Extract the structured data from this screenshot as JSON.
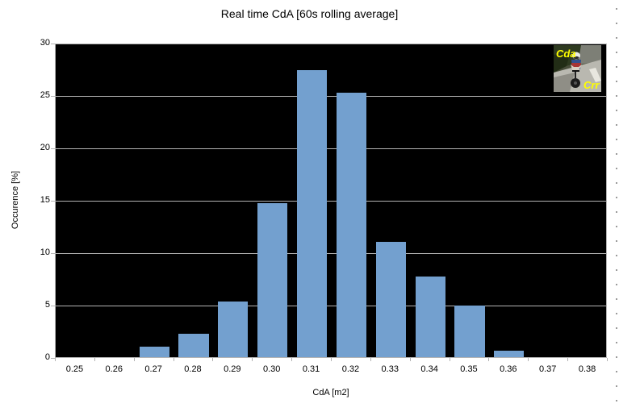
{
  "title": "Real time CdA [60s rolling average]",
  "chart_data": {
    "type": "bar",
    "title": "Real time CdA [60s rolling average]",
    "xlabel": "CdA [m2]",
    "ylabel": "Occurence [%]",
    "categories": [
      "0.25",
      "0.26",
      "0.27",
      "0.28",
      "0.29",
      "0.30",
      "0.31",
      "0.32",
      "0.33",
      "0.34",
      "0.35",
      "0.36",
      "0.37",
      "0.38"
    ],
    "values": [
      0,
      0,
      1.0,
      2.2,
      5.3,
      14.7,
      27.4,
      25.2,
      11.0,
      7.7,
      4.9,
      0.65,
      0,
      0
    ],
    "ylim": [
      0,
      30
    ],
    "yticks": [
      0,
      5,
      10,
      15,
      20,
      25,
      30
    ],
    "grid": true,
    "legend": "none",
    "plot_background": "#000000",
    "bar_color": "#73a0cf",
    "gridline_color": "#b3b3b3"
  },
  "overlay_image": {
    "description": "cyclist-time-trial-photo",
    "label_top_left": "Cda",
    "label_bottom_right": "Crr",
    "label_color": "#ffff00"
  }
}
